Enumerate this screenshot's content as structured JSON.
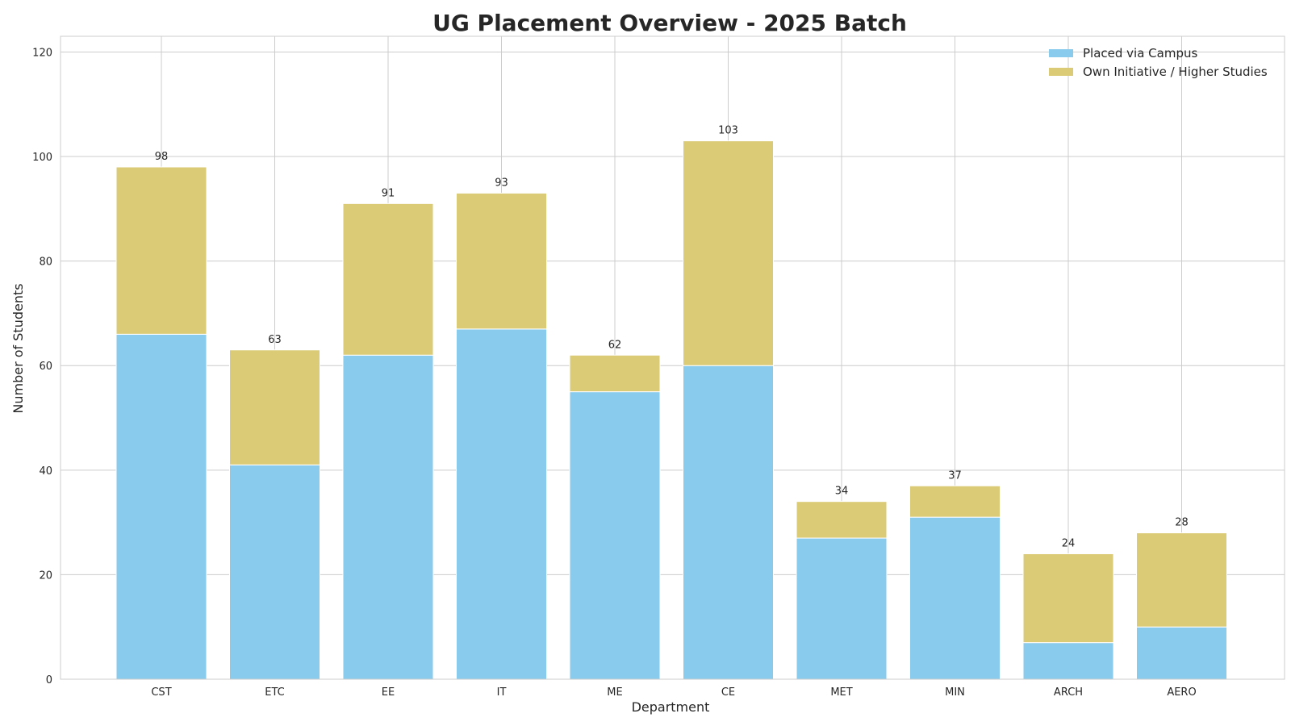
{
  "chart_data": {
    "type": "bar",
    "stacked": true,
    "title": "UG Placement Overview - 2025 Batch",
    "xlabel": "Department",
    "ylabel": "Number of Students",
    "ylim": [
      0,
      123
    ],
    "yticks": [
      0,
      20,
      40,
      60,
      80,
      100,
      120
    ],
    "grid": true,
    "legend_position": "top-right",
    "categories": [
      "CST",
      "ETC",
      "EE",
      "IT",
      "ME",
      "CE",
      "MET",
      "MIN",
      "ARCH",
      "AERO"
    ],
    "series": [
      {
        "name": "Placed via Campus",
        "color": "#89CBED",
        "values": [
          66,
          41,
          62,
          67,
          55,
          60,
          27,
          31,
          7,
          10
        ]
      },
      {
        "name": "Own Initiative / Higher Studies",
        "color": "#DBCB77",
        "values": [
          32,
          22,
          29,
          26,
          7,
          43,
          7,
          6,
          17,
          18
        ]
      }
    ],
    "totals": [
      98,
      63,
      91,
      93,
      62,
      103,
      34,
      37,
      24,
      28
    ]
  }
}
